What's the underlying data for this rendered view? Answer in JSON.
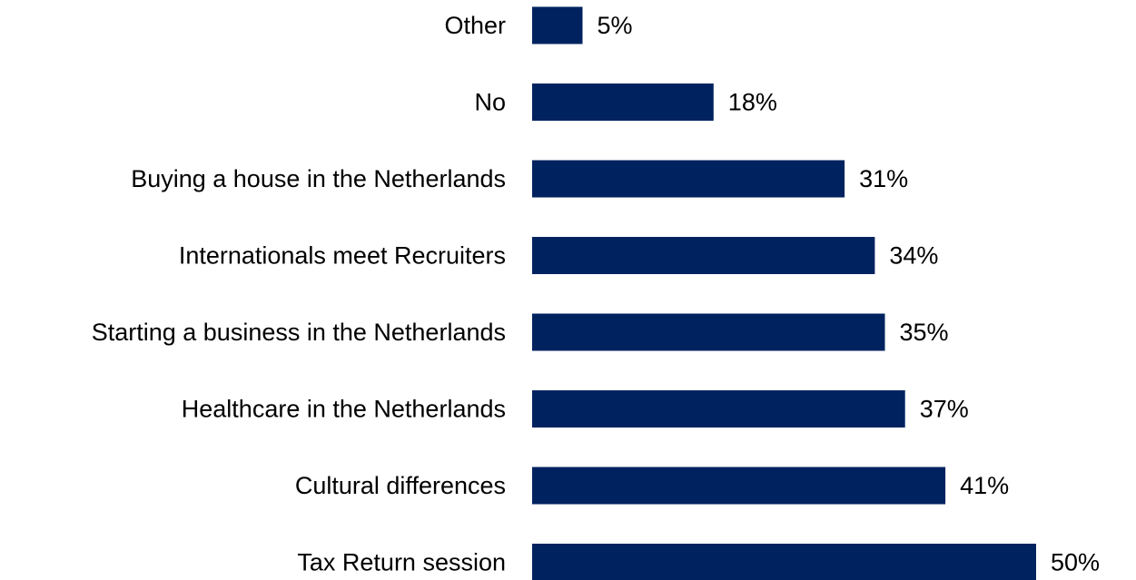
{
  "chart_data": {
    "type": "bar",
    "orientation": "horizontal",
    "title": "",
    "xlabel": "",
    "ylabel": "",
    "grid": false,
    "categories": [
      "Other",
      "No",
      "Buying a house in the Netherlands",
      "Internationals meet Recruiters",
      "Starting a business in the Netherlands",
      "Healthcare in the Netherlands",
      "Cultural differences",
      "Tax Return session"
    ],
    "values": [
      5,
      18,
      31,
      34,
      35,
      37,
      41,
      50
    ],
    "value_labels": [
      "5%",
      "18%",
      "31%",
      "34%",
      "35%",
      "37%",
      "41%",
      "50%"
    ],
    "unit": "%",
    "bar_color": "#00235F"
  }
}
